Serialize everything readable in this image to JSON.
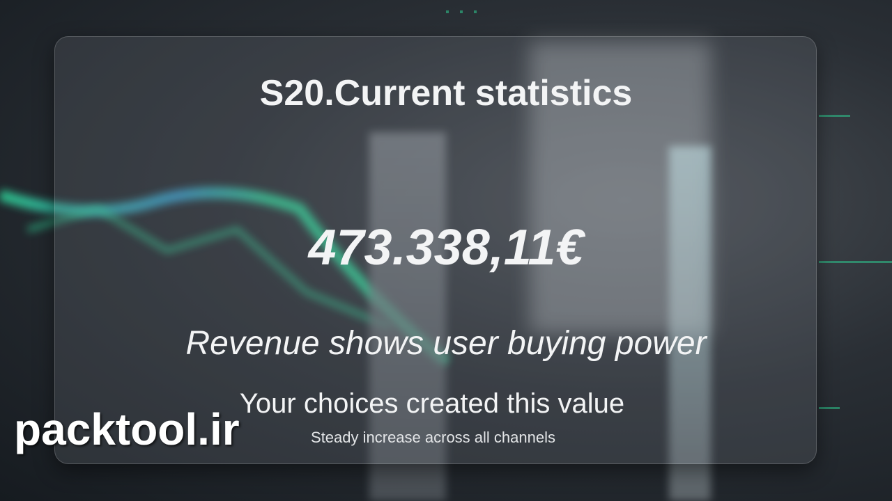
{
  "card": {
    "title": "S20.Current statistics",
    "value": "473.338,11€",
    "subtitle": "Revenue shows user buying power",
    "message": "Your choices created this value",
    "detail": "Steady increase across all channels"
  },
  "watermark": "packtool.ir",
  "colors": {
    "accent_green": "#2fd89a",
    "accent_blue": "#3aa6d8",
    "card_text": "#f3f4f5"
  }
}
